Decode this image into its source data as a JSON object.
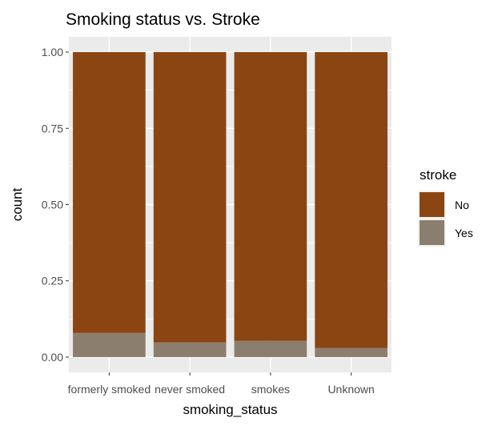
{
  "chart_data": {
    "type": "bar",
    "stacked": true,
    "title": "Smoking status vs. Stroke",
    "xlabel": "smoking_status",
    "ylabel": "count",
    "categories": [
      "formerly smoked",
      "never smoked",
      "smokes",
      "Unknown"
    ],
    "series": [
      {
        "name": "No",
        "color": "#8B4513",
        "values": [
          0.921,
          0.952,
          0.947,
          0.97
        ]
      },
      {
        "name": "Yes",
        "color": "#8C7E6E",
        "values": [
          0.079,
          0.048,
          0.053,
          0.03
        ]
      }
    ],
    "ylim": [
      -0.05,
      1.05
    ],
    "yticks": [
      0.0,
      0.25,
      0.5,
      0.75,
      1.0
    ],
    "ytick_labels": [
      "0.00",
      "0.25",
      "0.50",
      "0.75",
      "1.00"
    ],
    "grid": true,
    "legend": {
      "title": "stroke",
      "placement": "right"
    },
    "colors": {
      "panel": "#EBEBEB",
      "gridline": "#FFFFFF",
      "axis_text": "#4D4D4D",
      "tick": "#333333"
    }
  }
}
